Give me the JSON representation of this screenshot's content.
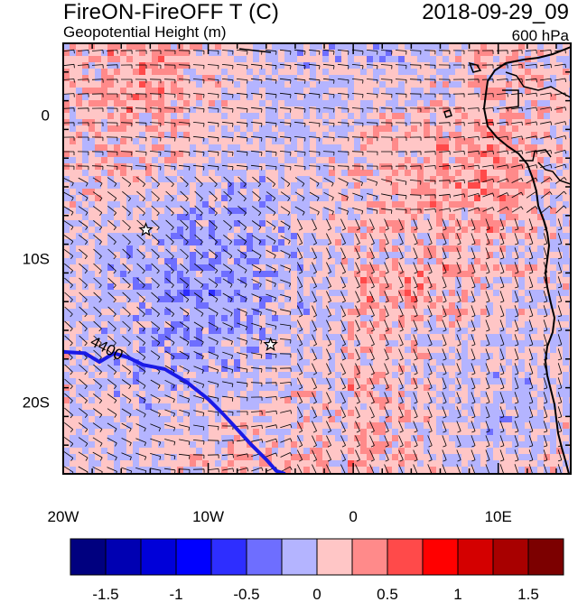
{
  "header": {
    "title": "FireON-FireOFF T (C)",
    "subtitle": "Geopotential Height (m)",
    "datetime": "2018-09-29_09",
    "level": "600 hPa"
  },
  "map": {
    "projection": "cylindrical-equidistant",
    "lon_range": [
      -20,
      15
    ],
    "lat_range": [
      -25,
      5
    ],
    "x_ticks": [
      {
        "value": -20,
        "label": "20W"
      },
      {
        "value": -10,
        "label": "10W"
      },
      {
        "value": 0,
        "label": "0"
      },
      {
        "value": 10,
        "label": "10E"
      }
    ],
    "y_ticks": [
      {
        "value": 0,
        "label": "0"
      },
      {
        "value": -10,
        "label": "10S"
      },
      {
        "value": -20,
        "label": "20S"
      }
    ],
    "contour": {
      "label": "4400",
      "color": "#1a1ae6",
      "points": [
        [
          -20,
          -16.5
        ],
        [
          -18.5,
          -16.6
        ],
        [
          -17.5,
          -17.2
        ],
        [
          -16.5,
          -16.6
        ],
        [
          -15.5,
          -16.9
        ],
        [
          -14.5,
          -17.4
        ],
        [
          -13,
          -17.7
        ],
        [
          -11.5,
          -18.6
        ],
        [
          -10,
          -19.8
        ],
        [
          -9,
          -20.8
        ],
        [
          -8,
          -21.9
        ],
        [
          -7,
          -23.0
        ],
        [
          -6,
          -24.0
        ],
        [
          -5.3,
          -24.8
        ],
        [
          -4.7,
          -25
        ]
      ]
    },
    "markers": [
      {
        "name": "star-1",
        "lon": -14.3,
        "lat": -8.0
      },
      {
        "name": "star-2",
        "lon": -5.7,
        "lat": -16.0
      }
    ]
  },
  "colorbar": {
    "colors": [
      "#00007f",
      "#0000b2",
      "#0000d9",
      "#0000ff",
      "#2e2eff",
      "#6e6eff",
      "#b4b4ff",
      "#ffc6c6",
      "#ff8a8a",
      "#ff4a4a",
      "#ff0000",
      "#d40000",
      "#a80000",
      "#7c0000"
    ],
    "labels": [
      {
        "value": -1.5,
        "label": "-1.5"
      },
      {
        "value": -1,
        "label": "-1"
      },
      {
        "value": -0.5,
        "label": "-0.5"
      },
      {
        "value": 0,
        "label": "0"
      },
      {
        "value": 0.5,
        "label": "0.5"
      },
      {
        "value": 1,
        "label": "1"
      },
      {
        "value": 1.5,
        "label": "1.5"
      }
    ],
    "range": [
      -1.75,
      1.75
    ]
  }
}
